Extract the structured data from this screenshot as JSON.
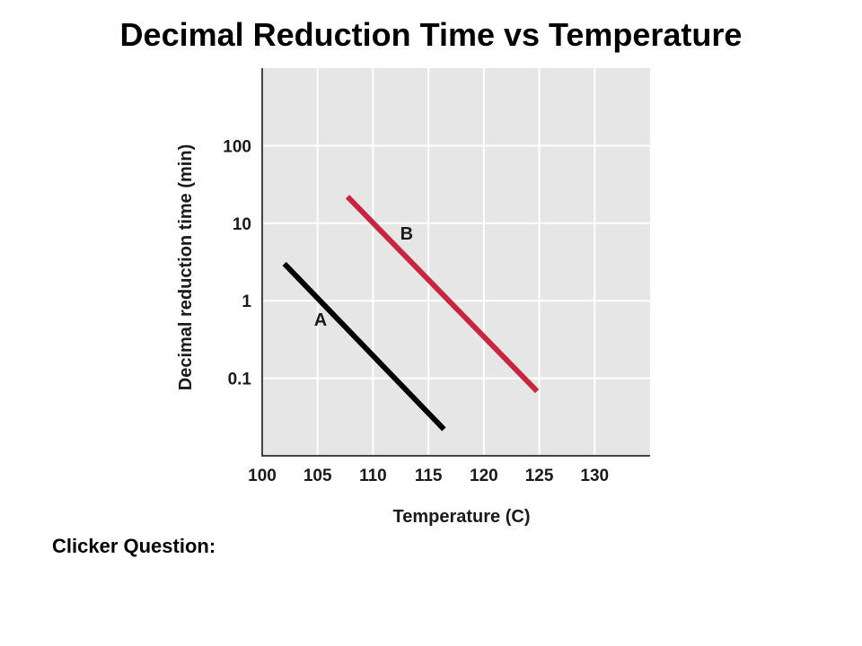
{
  "slide": {
    "title": "Decimal Reduction Time vs Temperature",
    "question_label": "Clicker Question:"
  },
  "chart_data": {
    "type": "line",
    "xlabel": "Temperature (C)",
    "ylabel": "Decimal reduction time (min)",
    "x_ticks": [
      100,
      105,
      110,
      115,
      120,
      125,
      130
    ],
    "y_ticks": [
      0.1,
      1,
      10,
      100
    ],
    "y_tick_labels": [
      "0.1",
      "1",
      "10",
      "100"
    ],
    "xlim": [
      100,
      135
    ],
    "ylim": [
      0.01,
      1000
    ],
    "y_scale": "log",
    "grid": true,
    "plot_background": "#e6e6e6",
    "grid_color": "#ffffff",
    "series": [
      {
        "name": "A",
        "color": "#000000",
        "x": [
          102,
          116.4
        ],
        "y": [
          3,
          0.022
        ]
      },
      {
        "name": "B",
        "color": "#c8253e",
        "x": [
          107.7,
          124.8
        ],
        "y": [
          22,
          0.068
        ]
      }
    ]
  }
}
